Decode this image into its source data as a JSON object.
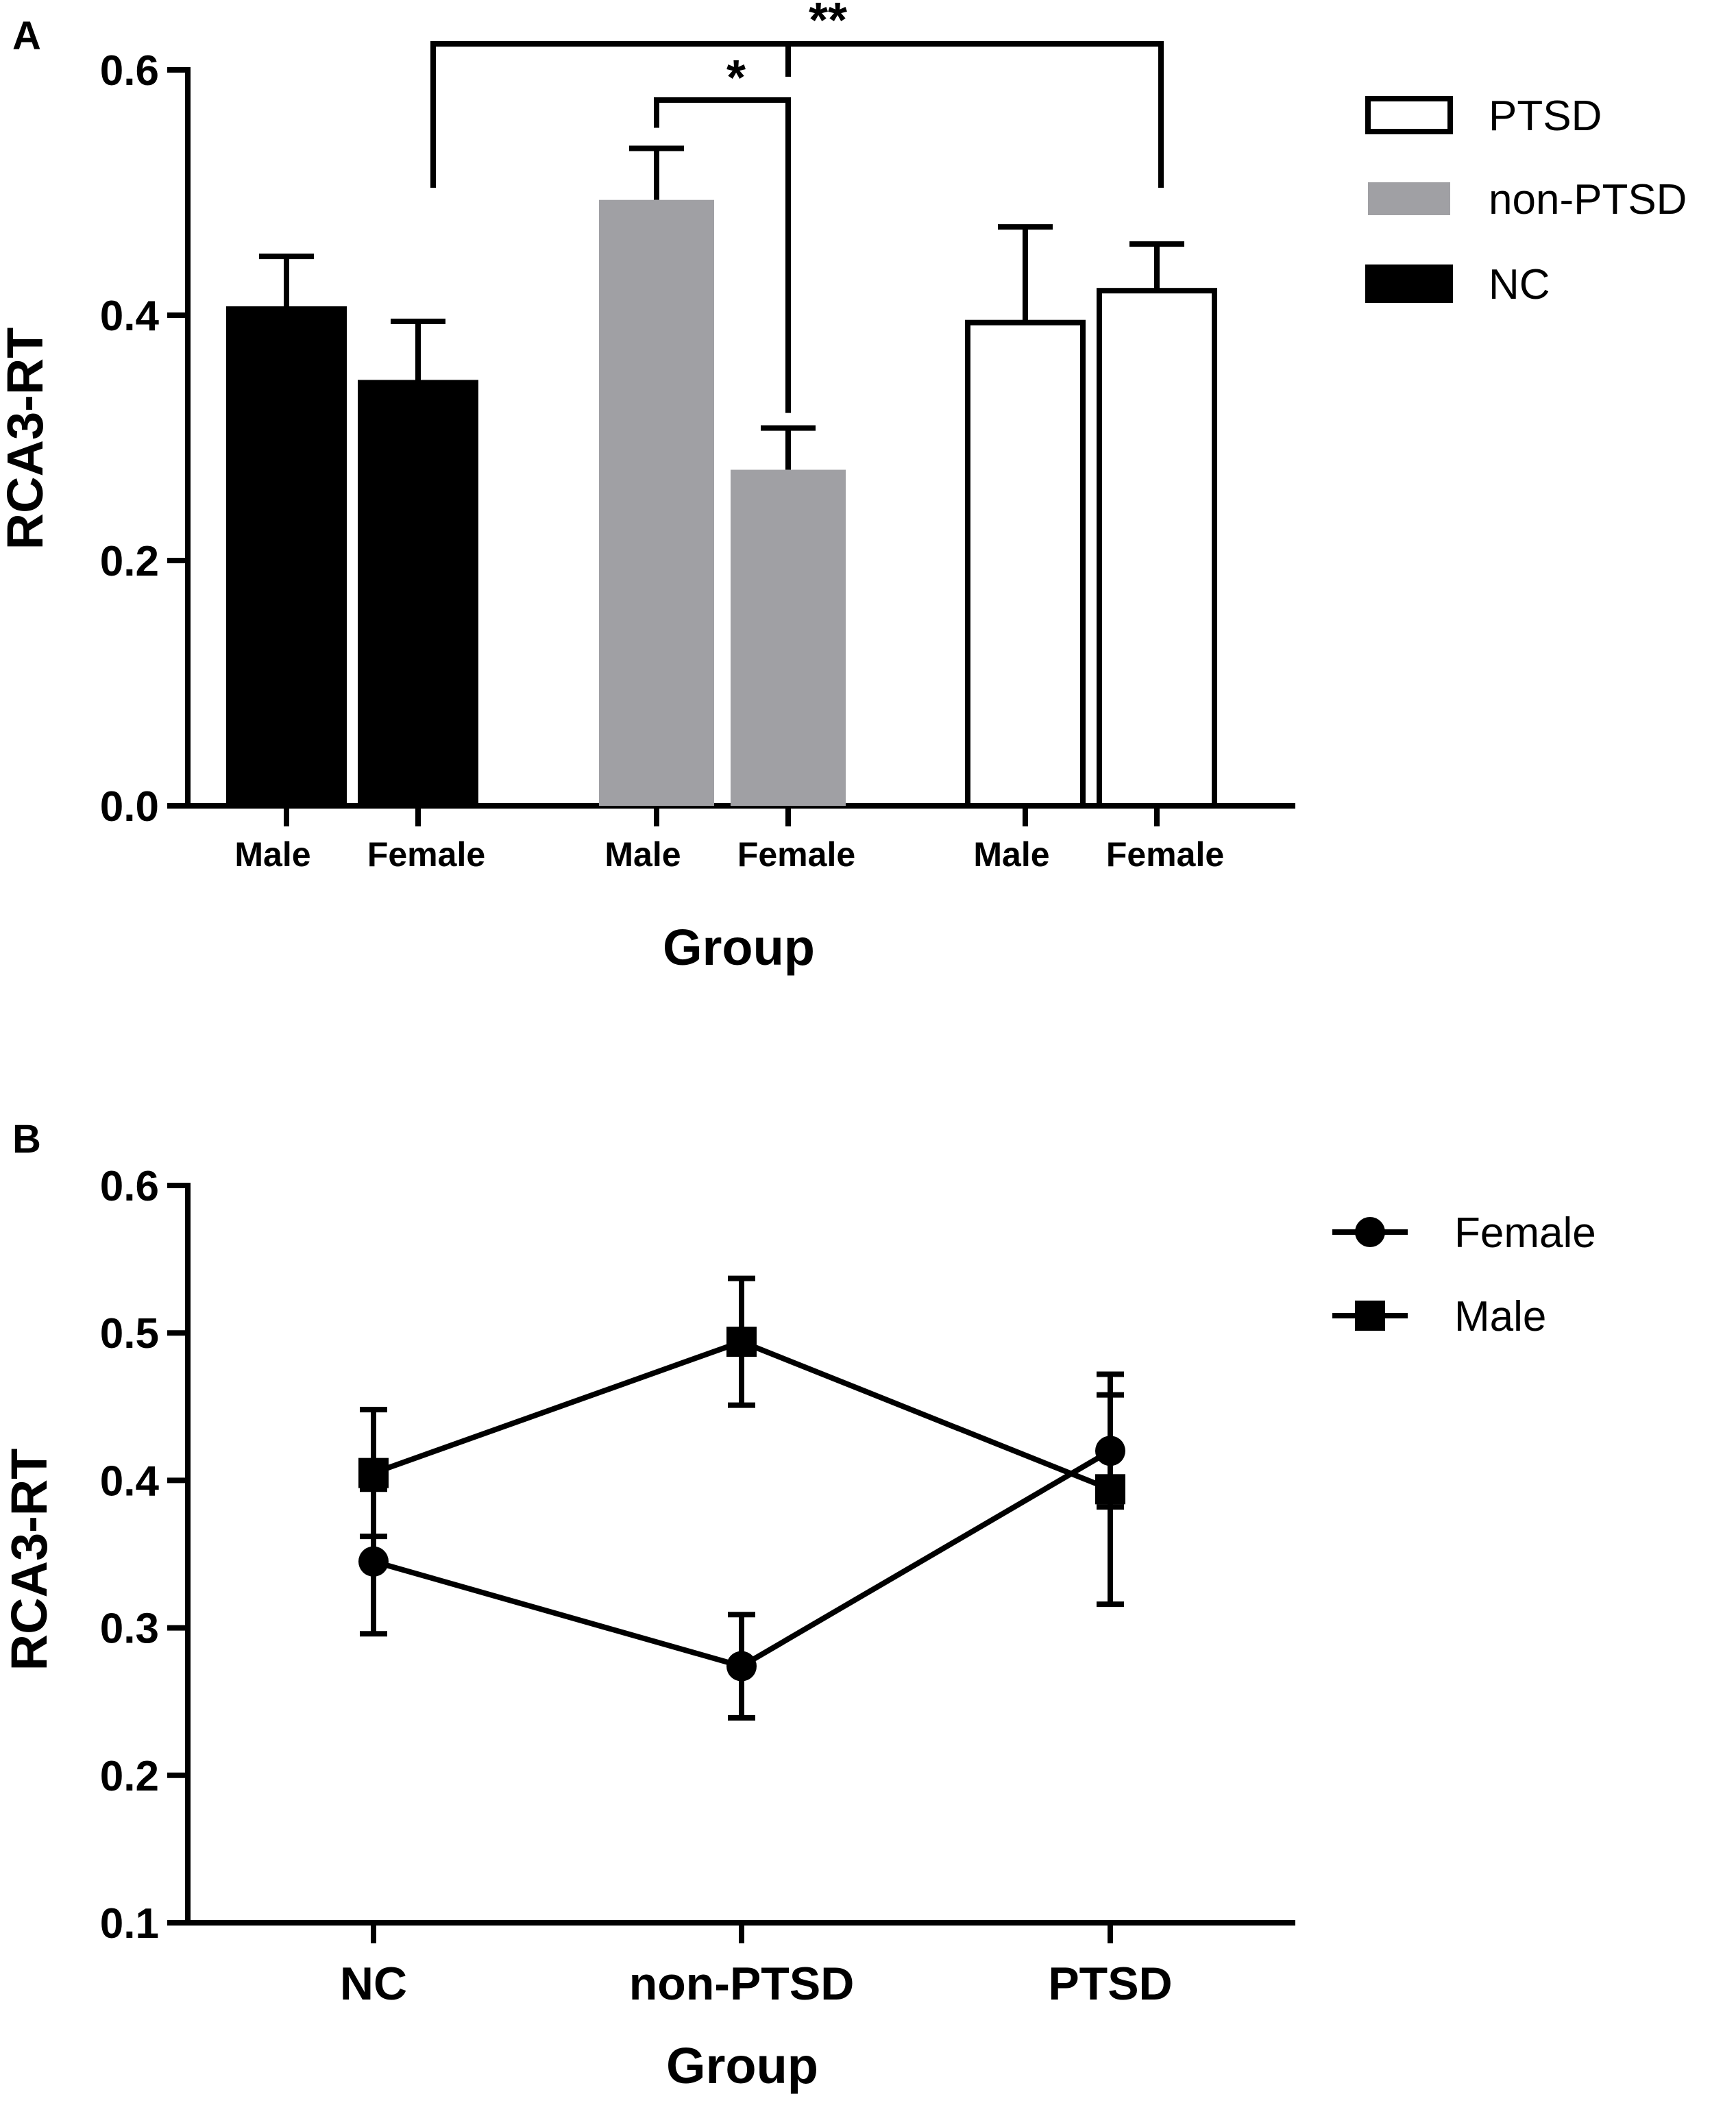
{
  "chart_data": [
    {
      "panel_label": "A",
      "type": "bar",
      "xlabel": "Group",
      "ylabel": "RCA3-RT",
      "ylim": [
        0,
        0.6
      ],
      "yticks": [
        "0.0",
        "0.2",
        "0.4",
        "0.6"
      ],
      "groups": [
        {
          "name": "NC",
          "color": "#000000",
          "bars": [
            {
              "label": "Male",
              "value": 0.405,
              "error": 0.043
            },
            {
              "label": "Female",
              "value": 0.345,
              "error": 0.05
            }
          ]
        },
        {
          "name": "non-PTSD",
          "color": "#a0a0a4",
          "bars": [
            {
              "label": "Male",
              "value": 0.494,
              "error": 0.042
            },
            {
              "label": "Female",
              "value": 0.274,
              "error": 0.034
            }
          ]
        },
        {
          "name": "PTSD",
          "color": "#ffffff",
          "bars": [
            {
              "label": "Male",
              "value": 0.394,
              "error": 0.078
            },
            {
              "label": "Female",
              "value": 0.42,
              "error": 0.038
            }
          ]
        }
      ],
      "legend": [
        {
          "name": "PTSD",
          "color": "#ffffff"
        },
        {
          "name": "non-PTSD",
          "color": "#a0a0a4"
        },
        {
          "name": "NC",
          "color": "#000000"
        }
      ],
      "legend_position": "top-right",
      "significance": [
        {
          "label": "*",
          "from": "non-PTSD Male",
          "to": "non-PTSD Female"
        },
        {
          "label": "**",
          "from": "NC Female",
          "to": "PTSD Female"
        }
      ],
      "grid": false
    },
    {
      "panel_label": "B",
      "type": "line",
      "xlabel": "Group",
      "ylabel": "RCA3-RT",
      "categories": [
        "NC",
        "non-PTSD",
        "PTSD"
      ],
      "ylim": [
        0.1,
        0.6
      ],
      "yticks": [
        "0.1",
        "0.2",
        "0.3",
        "0.4",
        "0.5",
        "0.6"
      ],
      "series": [
        {
          "name": "Female",
          "marker": "circle",
          "values": [
            0.345,
            0.274,
            0.42
          ],
          "errors": [
            0.049,
            0.035,
            0.038
          ]
        },
        {
          "name": "Male",
          "marker": "square",
          "values": [
            0.405,
            0.494,
            0.394
          ],
          "errors": [
            0.043,
            0.043,
            0.078
          ]
        }
      ],
      "legend_position": "top-right",
      "grid": false
    }
  ]
}
